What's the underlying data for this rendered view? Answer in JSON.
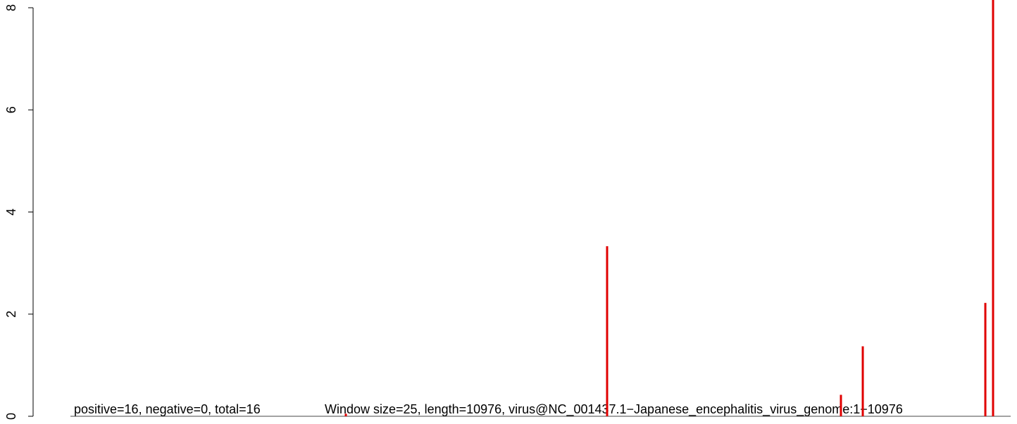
{
  "chart_data": {
    "type": "bar",
    "x": [
      3519,
      6459,
      9090,
      9336,
      10715,
      10802
    ],
    "values": [
      0.05,
      3.33,
      0.42,
      1.37,
      2.22,
      8.2
    ],
    "color": "#e00000",
    "xlim": [
      0,
      11000
    ],
    "ylim": [
      0,
      8
    ],
    "yticks": [
      0,
      2,
      4,
      6,
      8
    ],
    "annotations": [
      "positive=16, negative=0, total=16",
      "Window size=25, length=10976, virus@NC_001437.1−Japanese_encephalitis_virus_genome:1−10976"
    ]
  }
}
